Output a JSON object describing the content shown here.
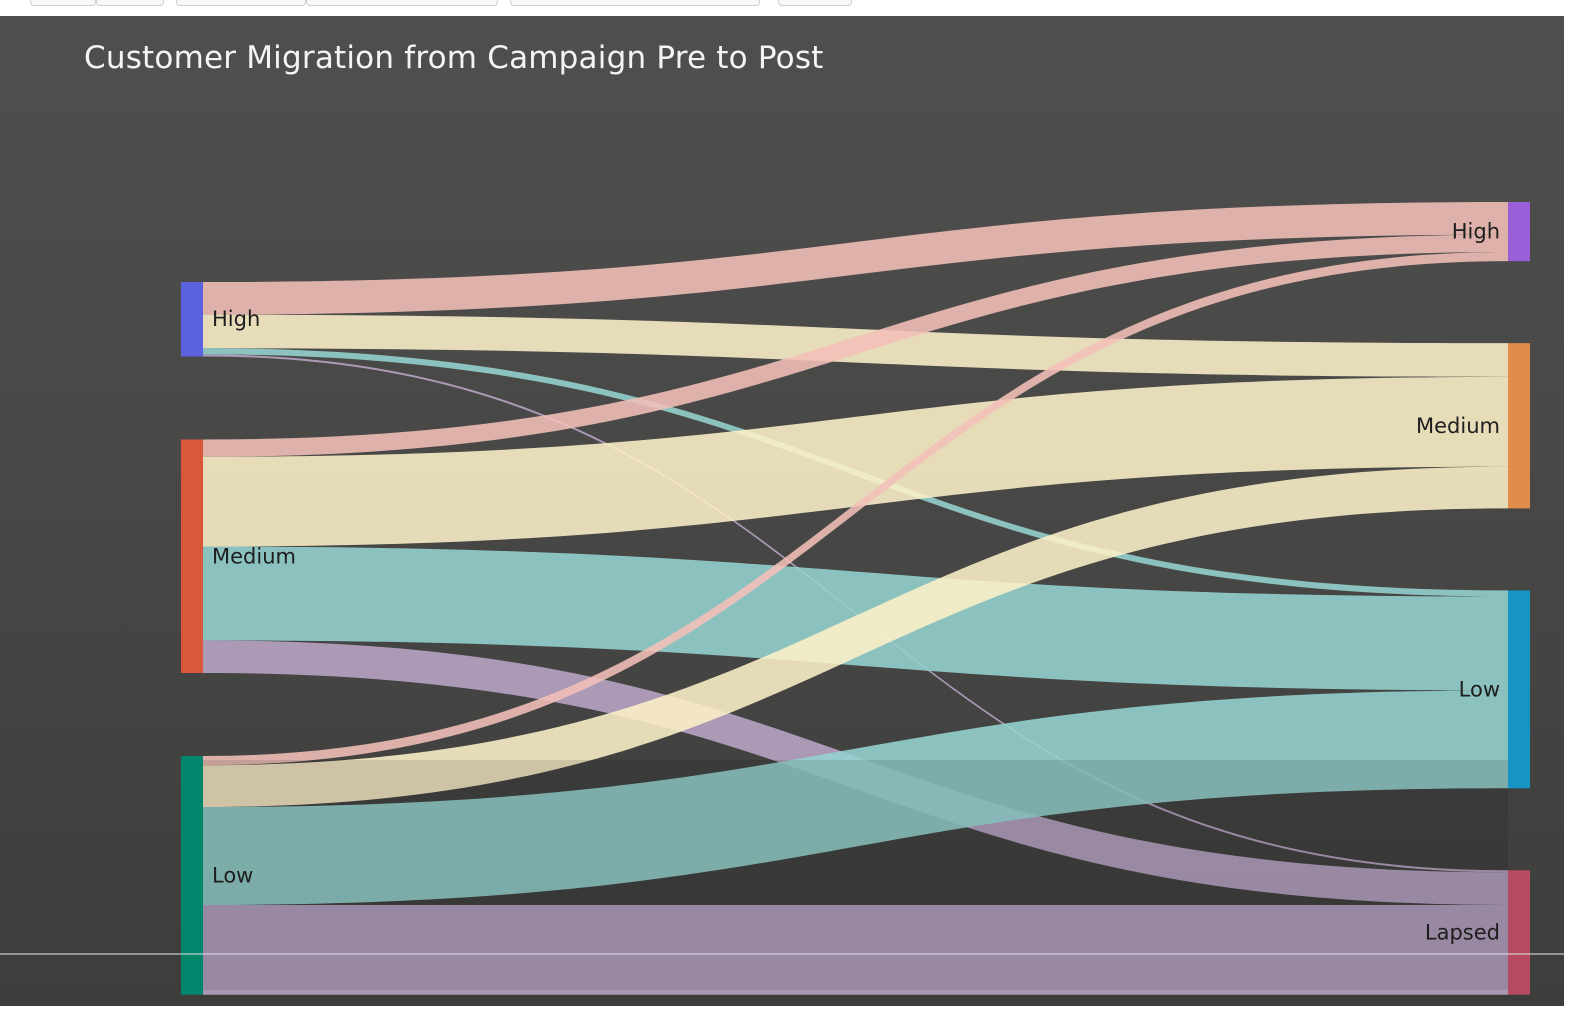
{
  "window": {
    "toolbar_buttons": 6
  },
  "chart_data": {
    "type": "sankey",
    "title": "Customer Migration from Campaign Pre to Post",
    "nodes": {
      "source": [
        {
          "id": "pre-high",
          "label": "High",
          "color": "#5b62e0"
        },
        {
          "id": "pre-medium",
          "label": "Medium",
          "color": "#d9573a"
        },
        {
          "id": "pre-low",
          "label": "Low",
          "color": "#00866a"
        }
      ],
      "target": [
        {
          "id": "post-high",
          "label": "High",
          "color": "#9a5fd8"
        },
        {
          "id": "post-medium",
          "label": "Medium",
          "color": "#e08d4a"
        },
        {
          "id": "post-low",
          "label": "Low",
          "color": "#1795c2"
        },
        {
          "id": "post-lapsed",
          "label": "Lapsed",
          "color": "#b54a60"
        }
      ]
    },
    "links": [
      {
        "source": "pre-high",
        "target": "post-high",
        "value": 32
      },
      {
        "source": "pre-high",
        "target": "post-medium",
        "value": 33
      },
      {
        "source": "pre-high",
        "target": "post-low",
        "value": 6
      },
      {
        "source": "pre-high",
        "target": "post-lapsed",
        "value": 2
      },
      {
        "source": "pre-medium",
        "target": "post-high",
        "value": 17
      },
      {
        "source": "pre-medium",
        "target": "post-medium",
        "value": 88
      },
      {
        "source": "pre-medium",
        "target": "post-low",
        "value": 92
      },
      {
        "source": "pre-medium",
        "target": "post-lapsed",
        "value": 32
      },
      {
        "source": "pre-low",
        "target": "post-high",
        "value": 9
      },
      {
        "source": "pre-low",
        "target": "post-medium",
        "value": 41
      },
      {
        "source": "pre-low",
        "target": "post-low",
        "value": 96
      },
      {
        "source": "pre-low",
        "target": "post-lapsed",
        "value": 88
      }
    ],
    "link_colors": {
      "post-high": "#f2bfb8",
      "post-medium": "#fdf0c8",
      "post-low": "#95d3cf",
      "post-lapsed": "#b9a5c6"
    },
    "background": "#4a4a49"
  }
}
